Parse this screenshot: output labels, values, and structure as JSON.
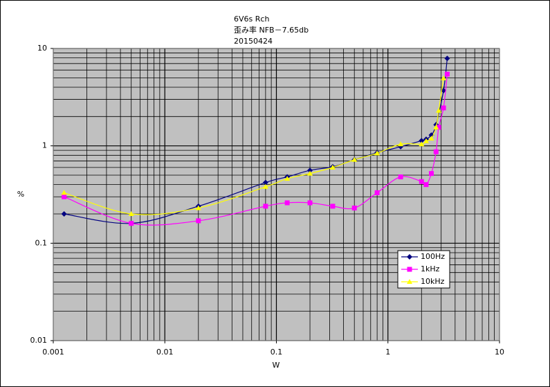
{
  "chart_data": {
    "type": "line",
    "title_lines": [
      "6V6s Rch",
      "歪み率 NFB－7.65db",
      "20150424"
    ],
    "xlabel": "W",
    "ylabel": "%",
    "log_x": true,
    "log_y": true,
    "xlim": [
      0.001,
      10
    ],
    "xticks": [
      0.001,
      0.01,
      0.1,
      1,
      10
    ],
    "ylim": [
      0.01,
      10
    ],
    "yticks": [
      0.01,
      0.1,
      1,
      10
    ],
    "grid": true,
    "minor_grid": true,
    "smooth": true,
    "legend": "lower right",
    "plot_background": "#c0c0c0",
    "series": [
      {
        "name": "100Hz",
        "color": "#000080",
        "marker": "diamond",
        "x": [
          0.00125,
          0.005,
          0.02,
          0.08,
          0.125,
          0.2,
          0.32,
          0.5,
          0.8,
          1.3,
          2,
          2.2,
          2.45,
          2.7,
          3.15,
          3.4
        ],
        "values": [
          0.2,
          0.16,
          0.24,
          0.42,
          0.48,
          0.56,
          0.61,
          0.72,
          0.85,
          0.98,
          1.13,
          1.17,
          1.29,
          1.65,
          3.7,
          7.9
        ]
      },
      {
        "name": "1kHz",
        "color": "#ff00ff",
        "marker": "square",
        "x": [
          0.00125,
          0.005,
          0.02,
          0.08,
          0.125,
          0.2,
          0.32,
          0.5,
          0.8,
          1.3,
          2,
          2.2,
          2.45,
          2.7,
          2.85,
          3.15,
          3.4
        ],
        "values": [
          0.3,
          0.16,
          0.17,
          0.24,
          0.26,
          0.26,
          0.24,
          0.23,
          0.33,
          0.48,
          0.43,
          0.4,
          0.52,
          0.87,
          1.55,
          2.45,
          5.45
        ]
      },
      {
        "name": "10kHz",
        "color": "#ffff00",
        "marker": "triangle",
        "x": [
          0.00125,
          0.005,
          0.02,
          0.08,
          0.125,
          0.2,
          0.32,
          0.5,
          0.8,
          1.3,
          2,
          2.2,
          2.45,
          2.7,
          2.85,
          3.15
        ],
        "values": [
          0.33,
          0.2,
          0.23,
          0.38,
          0.46,
          0.52,
          0.6,
          0.72,
          0.84,
          1.04,
          1.04,
          1.12,
          1.19,
          1.55,
          2.3,
          4.95
        ]
      }
    ]
  }
}
